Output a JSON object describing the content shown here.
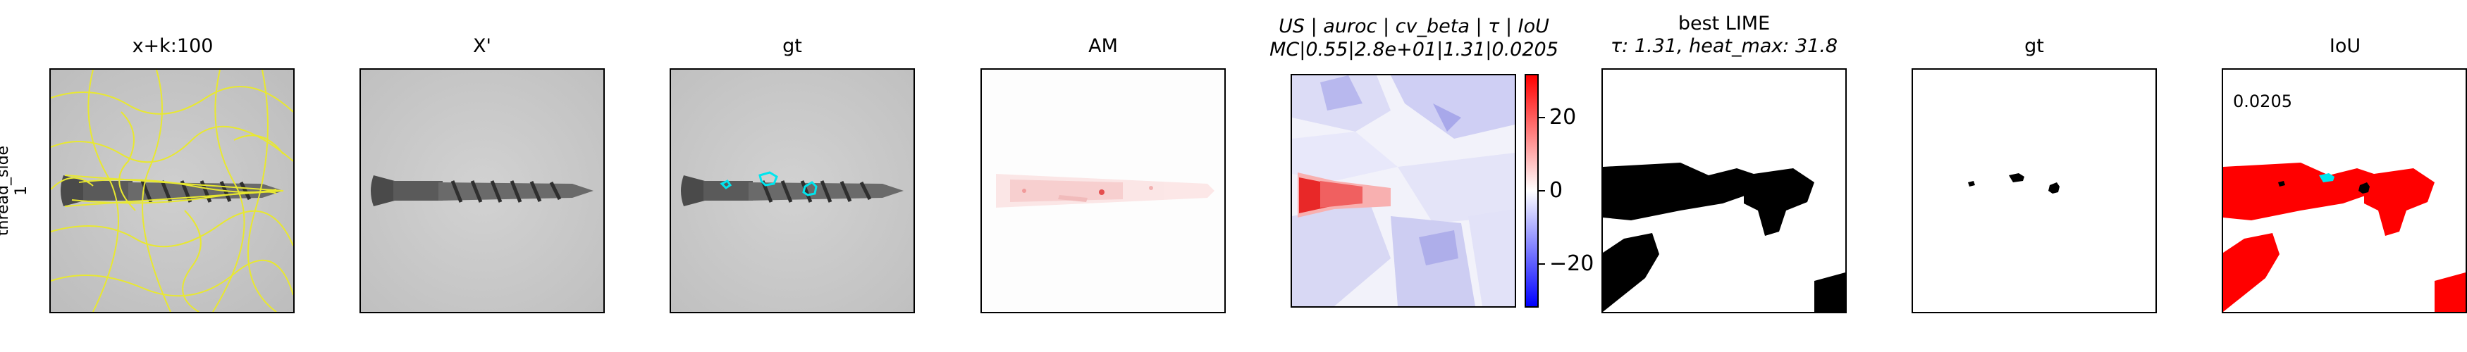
{
  "row_label": {
    "line1": "thread_side",
    "line2": "1"
  },
  "panels": {
    "p1": {
      "title": "x+k:100"
    },
    "p2": {
      "title": "X'"
    },
    "p3": {
      "title": "gt"
    },
    "p4": {
      "title": "AM"
    },
    "p5": {
      "title_line1": "US | auroc | cv_beta | τ | IoU",
      "title_line2": "MC|0.55|2.8e+01|1.31|0.0205"
    },
    "p6": {
      "title_line1": "best LIME",
      "title_line2": "τ: 1.31, heat_max: 31.8"
    },
    "p7": {
      "title": "gt"
    },
    "p8": {
      "title": "IoU",
      "annotation": "0.0205"
    }
  },
  "chart_data": {
    "type": "heatmap",
    "colorbar": {
      "colormap": "bwr",
      "ticks": [
        {
          "value": 20,
          "label": "20"
        },
        {
          "value": 0,
          "label": "0"
        },
        {
          "value": -20,
          "label": "−20"
        }
      ],
      "vlim": [
        -31.8,
        31.8
      ]
    }
  },
  "colors": {
    "superpixel_edge": "#e8e830",
    "gt_contour": "#00e5ee",
    "positive": "#ff0000",
    "negative": "#0000ff",
    "mask": "#000000"
  }
}
